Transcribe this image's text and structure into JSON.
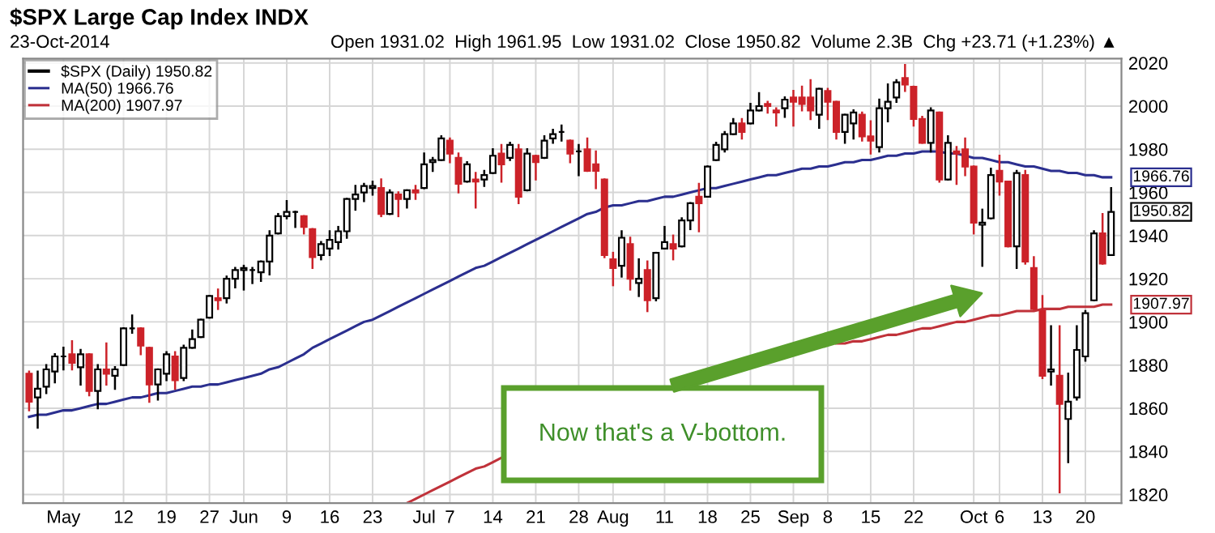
{
  "chart_data": {
    "type": "candlestick",
    "title": "$SPX Large Cap Index INDX",
    "categories": [
      null,
      null,
      null,
      null,
      "May",
      null,
      null,
      null,
      null,
      null,
      null,
      "12",
      null,
      null,
      null,
      null,
      "19",
      null,
      null,
      null,
      null,
      "27",
      null,
      null,
      null,
      "Jun",
      null,
      null,
      null,
      null,
      "9",
      null,
      null,
      null,
      null,
      "16",
      null,
      null,
      null,
      null,
      "23",
      null,
      null,
      null,
      null,
      null,
      "Jul",
      null,
      null,
      "7",
      null,
      null,
      null,
      null,
      "14",
      null,
      null,
      null,
      null,
      "21",
      null,
      null,
      null,
      null,
      "28",
      null,
      null,
      null,
      "Aug",
      null,
      null,
      null,
      null,
      null,
      "11",
      null,
      null,
      null,
      null,
      "18",
      null,
      null,
      null,
      null,
      "25",
      null,
      null,
      null,
      null,
      "Sep",
      null,
      null,
      null,
      "8",
      null,
      null,
      null,
      null,
      "15",
      null,
      null,
      null,
      null,
      "22",
      null,
      null,
      null,
      null,
      null,
      null,
      "Oct",
      null,
      null,
      "6",
      null,
      null,
      null,
      null,
      "13",
      null,
      null,
      null,
      null,
      "20",
      null,
      null,
      null
    ],
    "series": [
      {
        "name": "$SPX (Daily) 1950.82",
        "ohlc": [
          [
            1876,
            1877,
            1859,
            1863
          ],
          [
            1865,
            1877,
            1851,
            1869
          ],
          [
            1870,
            1880,
            1867,
            1878
          ],
          [
            1877,
            1885,
            1872,
            1884
          ],
          [
            1884,
            1888,
            1878,
            1884
          ],
          [
            1885,
            1891,
            1878,
            1881
          ],
          [
            1879,
            1887,
            1871,
            1885
          ],
          [
            1885,
            1885,
            1866,
            1868
          ],
          [
            1868,
            1880,
            1860,
            1878
          ],
          [
            1878,
            1890,
            1871,
            1876
          ],
          [
            1875,
            1879,
            1869,
            1878
          ],
          [
            1880,
            1897,
            1880,
            1897
          ],
          [
            1897,
            1903,
            1895,
            1897
          ],
          [
            1897,
            1897,
            1885,
            1889
          ],
          [
            1888,
            1888,
            1863,
            1871
          ],
          [
            1871,
            1878,
            1864,
            1878
          ],
          [
            1876,
            1886,
            1873,
            1885
          ],
          [
            1884,
            1886,
            1869,
            1873
          ],
          [
            1874,
            1889,
            1873,
            1888
          ],
          [
            1888,
            1896,
            1888,
            1892
          ],
          [
            1893,
            1901,
            1893,
            1901
          ],
          [
            1902,
            1912,
            1902,
            1912
          ],
          [
            1911,
            1915,
            1906,
            1910
          ],
          [
            1911,
            1921,
            1909,
            1920
          ],
          [
            1920,
            1925,
            1916,
            1924
          ],
          [
            1924,
            1926,
            1915,
            1925
          ],
          [
            1924,
            1925,
            1918,
            1924
          ],
          [
            1923,
            1928,
            1919,
            1928
          ],
          [
            1928,
            1942,
            1922,
            1940
          ],
          [
            1941,
            1950,
            1941,
            1949
          ],
          [
            1949,
            1956,
            1948,
            1951
          ],
          [
            1951,
            1951,
            1944,
            1951
          ],
          [
            1949,
            1949,
            1941,
            1944
          ],
          [
            1943,
            1943,
            1925,
            1930
          ],
          [
            1931,
            1937,
            1929,
            1936
          ],
          [
            1934,
            1942,
            1931,
            1938
          ],
          [
            1937,
            1944,
            1934,
            1942
          ],
          [
            1942,
            1957,
            1939,
            1957
          ],
          [
            1957,
            1963,
            1952,
            1959
          ],
          [
            1960,
            1964,
            1956,
            1963
          ],
          [
            1962,
            1965,
            1959,
            1963
          ],
          [
            1962,
            1966,
            1949,
            1950
          ],
          [
            1950,
            1961,
            1950,
            1960
          ],
          [
            1959,
            1960,
            1949,
            1957
          ],
          [
            1957,
            1961,
            1953,
            1961
          ],
          [
            1961,
            1963,
            1957,
            1960
          ],
          [
            1962,
            1978,
            1962,
            1973
          ],
          [
            1974,
            1976,
            1970,
            1975
          ],
          [
            1975,
            1986,
            1975,
            1985
          ],
          [
            1984,
            1985,
            1974,
            1978
          ],
          [
            1976,
            1978,
            1960,
            1964
          ],
          [
            1965,
            1974,
            1965,
            1973
          ],
          [
            1966,
            1969,
            1953,
            1965
          ],
          [
            1966,
            1970,
            1963,
            1968
          ],
          [
            1969,
            1980,
            1969,
            1977
          ],
          [
            1978,
            1982,
            1965,
            1973
          ],
          [
            1976,
            1983,
            1975,
            1982
          ],
          [
            1980,
            1982,
            1955,
            1958
          ],
          [
            1961,
            1980,
            1961,
            1978
          ],
          [
            1977,
            1977,
            1966,
            1974
          ],
          [
            1976,
            1986,
            1976,
            1984
          ],
          [
            1985,
            1989,
            1983,
            1987
          ],
          [
            1988,
            1991,
            1984,
            1988
          ],
          [
            1984,
            1984,
            1974,
            1978
          ],
          [
            1979,
            1982,
            1968,
            1979
          ],
          [
            1980,
            1985,
            1970,
            1970
          ],
          [
            1973,
            1979,
            1962,
            1970
          ],
          [
            1966,
            1966,
            1930,
            1931
          ],
          [
            1929,
            1932,
            1917,
            1925
          ],
          [
            1926,
            1942,
            1921,
            1939
          ],
          [
            1936,
            1939,
            1915,
            1920
          ],
          [
            1918,
            1929,
            1912,
            1920
          ],
          [
            1924,
            1928,
            1905,
            1910
          ],
          [
            1911,
            1932,
            1910,
            1932
          ],
          [
            1934,
            1944,
            1934,
            1937
          ],
          [
            1936,
            1940,
            1929,
            1934
          ],
          [
            1935,
            1948,
            1935,
            1947
          ],
          [
            1947,
            1955,
            1943,
            1955
          ],
          [
            1958,
            1964,
            1942,
            1955
          ],
          [
            1958,
            1972,
            1958,
            1972
          ],
          [
            1975,
            1983,
            1975,
            1982
          ],
          [
            1980,
            1988,
            1979,
            1987
          ],
          [
            1987,
            1994,
            1987,
            1992
          ],
          [
            1992,
            1994,
            1985,
            1988
          ],
          [
            1992,
            2001,
            1992,
            1998
          ],
          [
            1998,
            2006,
            1998,
            2000
          ],
          [
            2001,
            2002,
            1997,
            2000
          ],
          [
            1998,
            1999,
            1991,
            1997
          ],
          [
            1999,
            2004,
            1995,
            2003
          ],
          [
            2004,
            2007,
            1991,
            2002
          ],
          [
            2004,
            2009,
            1998,
            2001
          ],
          [
            2004,
            2012,
            1994,
            1998
          ],
          [
            1996,
            2008,
            1990,
            2008
          ],
          [
            2007,
            2008,
            1994,
            2002
          ],
          [
            2002,
            2002,
            1985,
            1988
          ],
          [
            1988,
            1996,
            1983,
            1996
          ],
          [
            1992,
            1998,
            1985,
            1997
          ],
          [
            1996,
            1997,
            1984,
            1986
          ],
          [
            1986,
            1993,
            1978,
            1984
          ],
          [
            1981,
            2003,
            1979,
            1999
          ],
          [
            1999,
            2010,
            1993,
            2002
          ],
          [
            2004,
            2012,
            2002,
            2011
          ],
          [
            2013,
            2019,
            2007,
            2010
          ],
          [
            2009,
            2009,
            1991,
            1994
          ],
          [
            1994,
            1995,
            1983,
            1983
          ],
          [
            1983,
            1999,
            1979,
            1998
          ],
          [
            1997,
            1997,
            1965,
            1966
          ],
          [
            1966,
            1986,
            1966,
            1983
          ],
          [
            1979,
            1981,
            1964,
            1978
          ],
          [
            1980,
            1985,
            1968,
            1972
          ],
          [
            1972,
            1972,
            1941,
            1946
          ],
          [
            1945,
            1952,
            1926,
            1946
          ],
          [
            1948,
            1971,
            1948,
            1968
          ],
          [
            1970,
            1977,
            1959,
            1965
          ],
          [
            1965,
            1965,
            1935,
            1935
          ],
          [
            1935,
            1970,
            1925,
            1969
          ],
          [
            1968,
            1970,
            1927,
            1928
          ],
          [
            1925,
            1930,
            1906,
            1906
          ],
          [
            1905,
            1912,
            1874,
            1875
          ],
          [
            1877,
            1898,
            1871,
            1878
          ],
          [
            1875,
            1898,
            1821,
            1862
          ],
          [
            1855,
            1876,
            1835,
            1863
          ],
          [
            1865,
            1898,
            1864,
            1887
          ],
          [
            1884,
            1905,
            1882,
            1904
          ],
          [
            1910,
            1942,
            1910,
            1941
          ],
          [
            1941,
            1950,
            1927,
            1927
          ],
          [
            1931,
            1962,
            1931,
            1951
          ]
        ]
      },
      {
        "name": "MA(50) 1966.76",
        "type": "line",
        "color": "#2b2f8f",
        "values": [
          1856,
          1857,
          1857,
          1858,
          1859,
          1859,
          1860,
          1861,
          1862,
          1862,
          1863,
          1864,
          1865,
          1865,
          1866,
          1867,
          1867,
          1868,
          1869,
          1870,
          1870,
          1871,
          1871,
          1872,
          1873,
          1874,
          1875,
          1876,
          1878,
          1879,
          1881,
          1883,
          1885,
          1888,
          1890,
          1892,
          1894,
          1896,
          1898,
          1900,
          1901,
          1903,
          1905,
          1907,
          1909,
          1911,
          1913,
          1915,
          1917,
          1919,
          1921,
          1923,
          1925,
          1926,
          1928,
          1930,
          1932,
          1934,
          1936,
          1938,
          1940,
          1942,
          1944,
          1946,
          1948,
          1950,
          1951,
          1953,
          1954,
          1954,
          1955,
          1956,
          1956,
          1957,
          1958,
          1958,
          1959,
          1960,
          1961,
          1962,
          1962,
          1963,
          1964,
          1965,
          1966,
          1967,
          1968,
          1968,
          1969,
          1970,
          1971,
          1971,
          1972,
          1972,
          1973,
          1974,
          1974,
          1975,
          1975,
          1976,
          1977,
          1977,
          1978,
          1978,
          1979,
          1979,
          1979,
          1978,
          1978,
          1977,
          1976,
          1976,
          1975,
          1974,
          1974,
          1973,
          1972,
          1972,
          1971,
          1970,
          1970,
          1969,
          1969,
          1968,
          1968,
          1967,
          1967
        ]
      },
      {
        "name": "MA(200) 1907.97",
        "type": "line",
        "color": "#c0323a",
        "values": [
          null,
          null,
          null,
          null,
          null,
          null,
          null,
          null,
          null,
          null,
          null,
          null,
          null,
          null,
          null,
          null,
          null,
          null,
          null,
          null,
          null,
          null,
          null,
          null,
          null,
          null,
          null,
          null,
          null,
          null,
          null,
          null,
          null,
          null,
          null,
          null,
          null,
          null,
          null,
          null,
          null,
          null,
          null,
          null,
          1816,
          1818,
          1820,
          1822,
          1824,
          1826,
          1828,
          1830,
          1832,
          1833,
          1835,
          1837,
          null,
          null,
          null,
          null,
          null,
          null,
          null,
          null,
          null,
          null,
          null,
          null,
          null,
          null,
          null,
          null,
          null,
          null,
          null,
          null,
          null,
          null,
          null,
          null,
          null,
          null,
          null,
          null,
          null,
          null,
          null,
          null,
          null,
          null,
          null,
          null,
          null,
          null,
          1890,
          1890,
          1891,
          1891,
          1892,
          1893,
          1894,
          1894,
          1895,
          1896,
          1897,
          1897,
          1898,
          1899,
          1900,
          1900,
          1901,
          1902,
          1903,
          1903,
          1904,
          1905,
          1905,
          1905,
          1906,
          1906,
          1906,
          1907,
          1907,
          1907,
          1907,
          1908,
          1908
        ]
      }
    ],
    "ylim": [
      1816,
      2022
    ],
    "yticks": [
      1820,
      1840,
      1860,
      1880,
      1900,
      1920,
      1940,
      1960,
      1980,
      2000,
      2020
    ],
    "grid": true,
    "legend": "top left",
    "annotations": [
      "23-Oct-2014",
      "Open 1931.02  High 1961.95  Low 1931.02  Close 1950.82  Volume 2.3B  Chg +23.71 (+1.23%) ▲",
      "Now that's a V-bottom.",
      "1950.82",
      "1966.76",
      "1907.97"
    ]
  }
}
